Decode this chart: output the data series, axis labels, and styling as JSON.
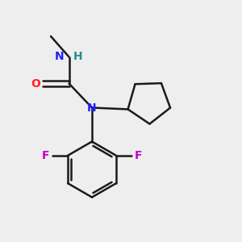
{
  "background_color": "#eeeeee",
  "bond_color": "#1a1a1a",
  "N_color": "#2020ff",
  "O_color": "#ff2020",
  "F_color": "#cc00cc",
  "H_color": "#2e8b8b",
  "line_width": 1.8,
  "figsize": [
    3.0,
    3.0
  ],
  "dpi": 100,
  "xlim": [
    0,
    10
  ],
  "ylim": [
    0,
    10
  ]
}
